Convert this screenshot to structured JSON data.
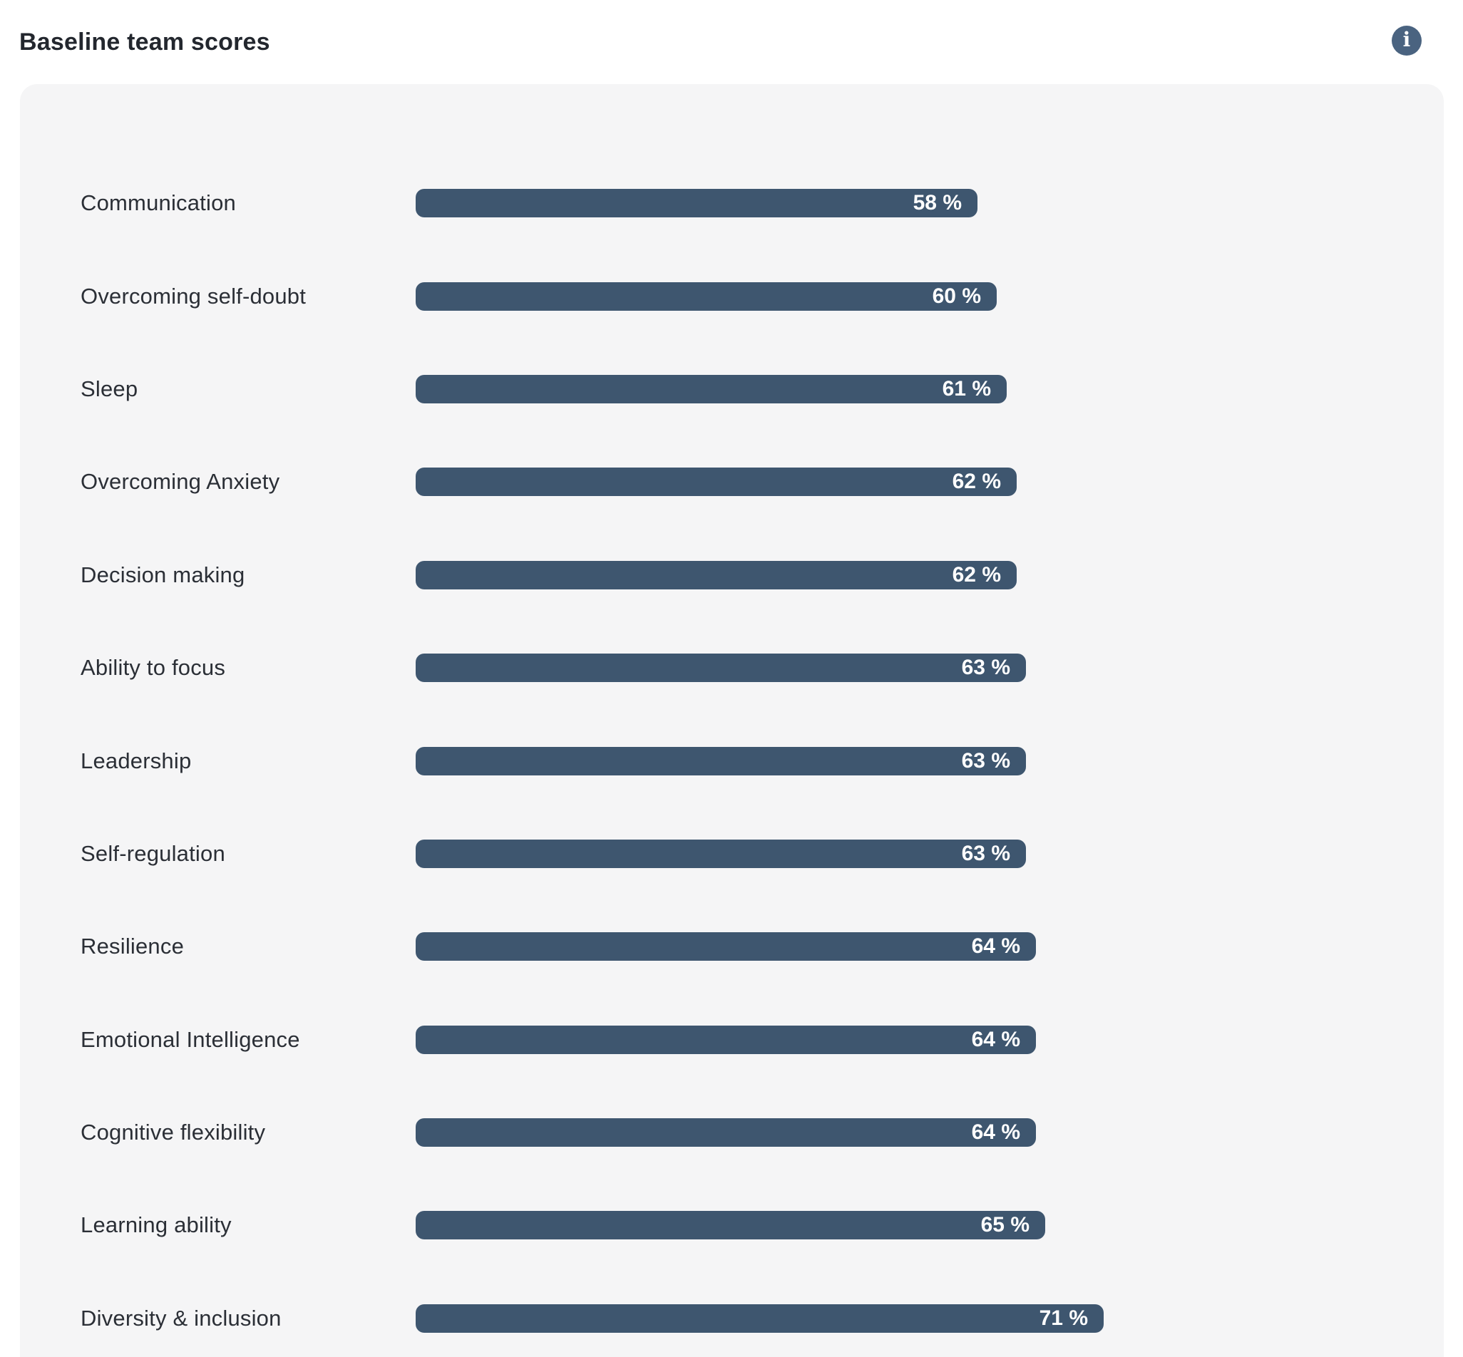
{
  "header": {
    "title": "Baseline team scores"
  },
  "icons": {
    "info": "i"
  },
  "colors": {
    "page_bg": "#ffffff",
    "panel_bg": "#f5f5f6",
    "bar": "#3e566f",
    "title_text": "#23272e",
    "label_text": "#2b2f36",
    "value_text": "#ffffff",
    "info_icon_bg": "#4a6380"
  },
  "chart_data": {
    "type": "bar",
    "orientation": "horizontal",
    "title": "Baseline team scores",
    "xlabel": "",
    "ylabel": "",
    "xlim": [
      0,
      100
    ],
    "grid": false,
    "legend": false,
    "value_format": "{value} %",
    "categories": [
      "Communication",
      "Overcoming self-doubt",
      "Sleep",
      "Overcoming Anxiety",
      "Decision making",
      "Ability to focus",
      "Leadership",
      "Self-regulation",
      "Resilience",
      "Emotional Intelligence",
      "Cognitive flexibility",
      "Learning ability",
      "Diversity & inclusion"
    ],
    "values": [
      58,
      60,
      61,
      62,
      62,
      63,
      63,
      63,
      64,
      64,
      64,
      65,
      71
    ],
    "value_labels": [
      "58 %",
      "60 %",
      "61 %",
      "62 %",
      "62 %",
      "63 %",
      "63 %",
      "63 %",
      "64 %",
      "64 %",
      "64 %",
      "65 %",
      "71 %"
    ]
  }
}
